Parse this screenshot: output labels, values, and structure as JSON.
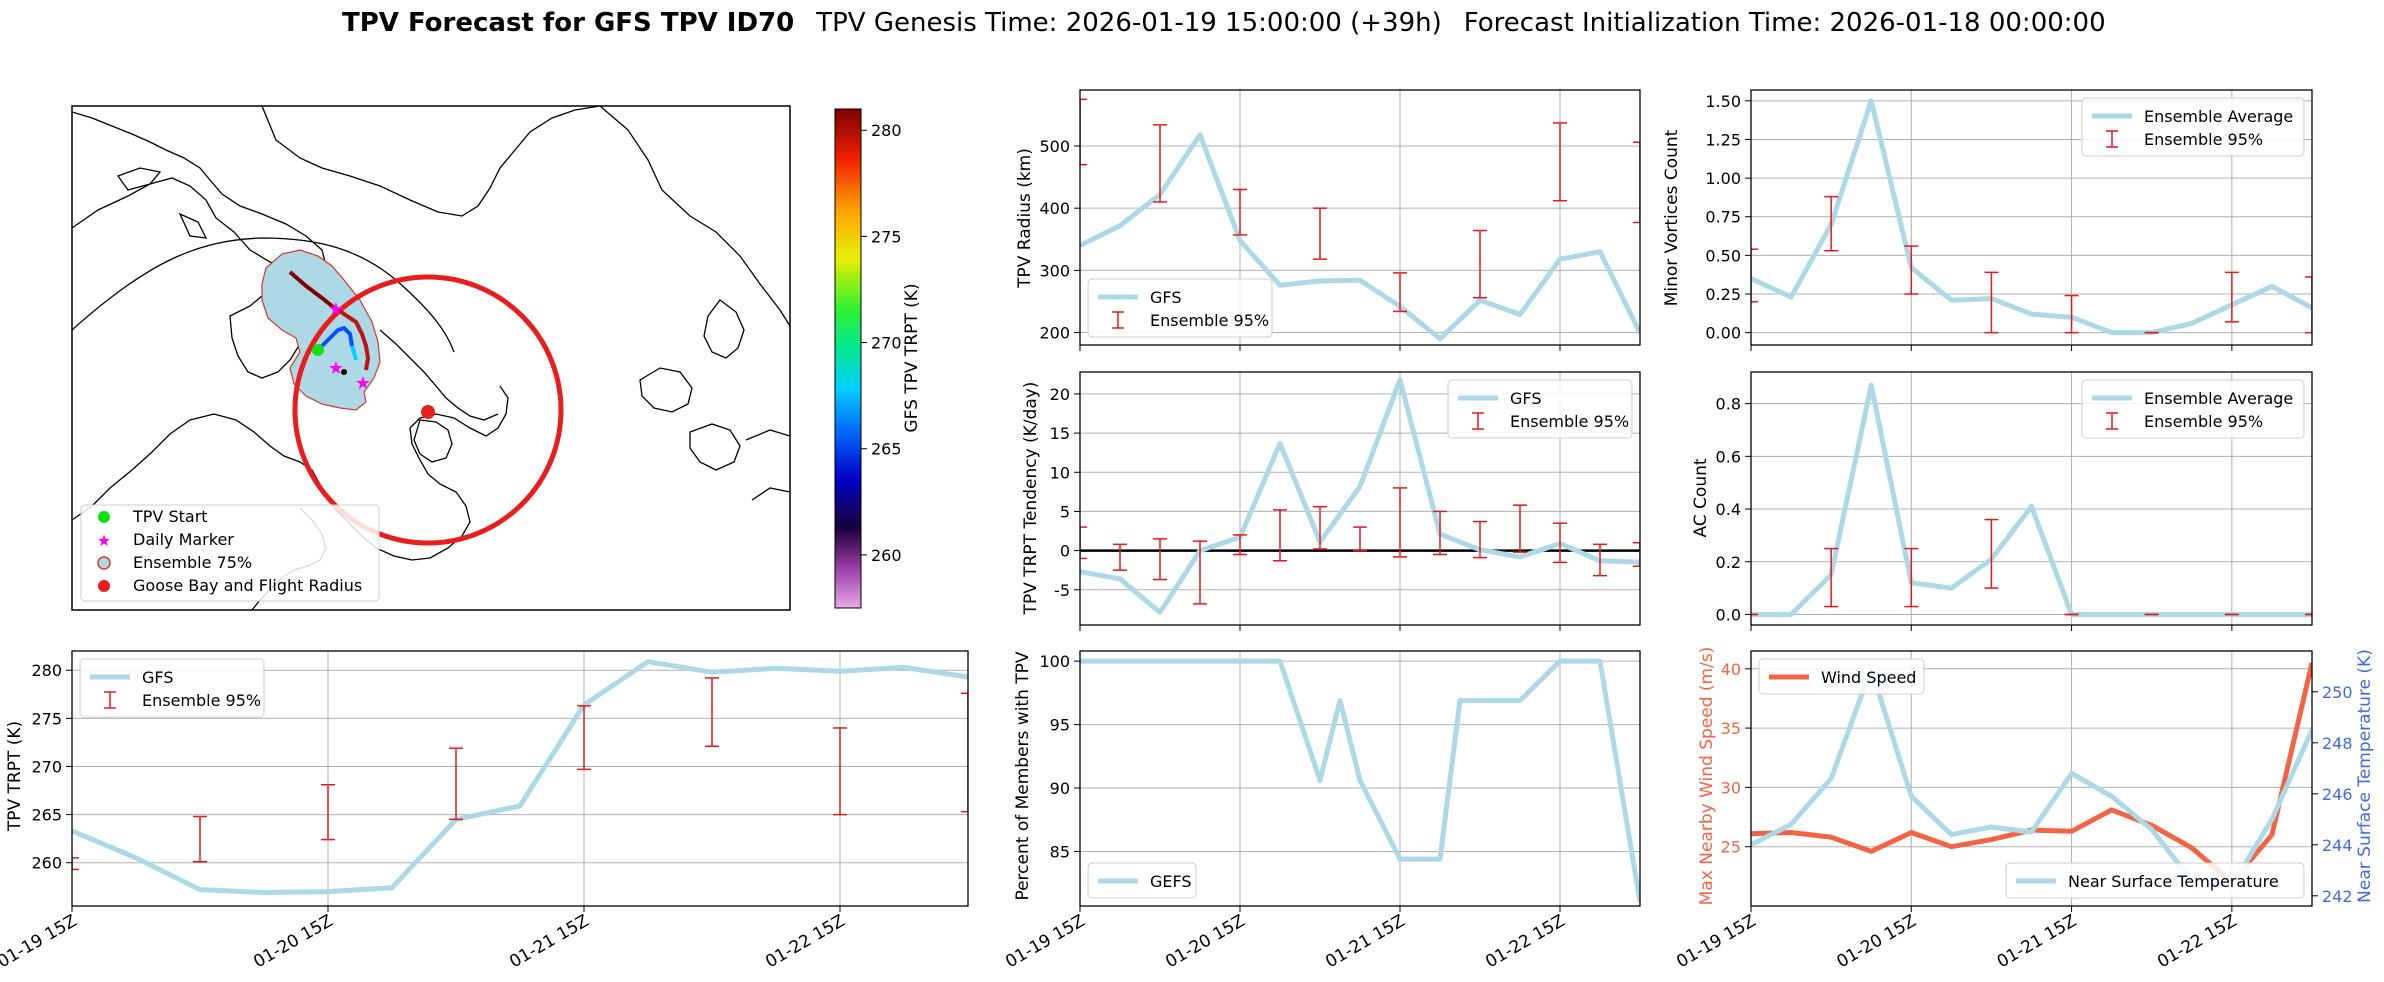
{
  "figure": {
    "title_bold": "TPV Forecast for GFS TPV ID70",
    "title_genesis": "TPV Genesis Time: 2026-01-19 15:00:00 (+39h)",
    "title_init": "Forecast Initialization Time: 2026-01-18 00:00:00"
  },
  "colors": {
    "gfs": "#add8e6",
    "ensemble": "#e31a1c",
    "wind": "#f26444",
    "temp_axis": "#4169e1",
    "grid": "#b0b0b0",
    "zero": "#000000"
  },
  "map": {
    "legend": [
      "TPV Start",
      "Daily Marker",
      "Ensemble 75%",
      "Goose Bay and Flight Radius"
    ],
    "colorbar_label": "GFS TPV TRPT (K)",
    "colorbar_ticks": [
      260,
      265,
      270,
      275,
      280
    ],
    "colorbar_range": [
      257.5,
      281
    ]
  },
  "chart_data": [
    {
      "id": "radius",
      "type": "line",
      "x_ticks": [
        "01-19 15Z",
        "01-20 15Z",
        "01-21 15Z",
        "01-22 15Z"
      ],
      "xlim": [
        0,
        84
      ],
      "ylabel": "TPV Radius (km)",
      "yticks": [
        200,
        300,
        400,
        500
      ],
      "ylim": [
        180,
        590
      ],
      "legend_pos": "lower-left",
      "series": [
        {
          "name": "GFS",
          "x": [
            0,
            6,
            12,
            18,
            24,
            30,
            36,
            42,
            48,
            54,
            60,
            66,
            72,
            78,
            84
          ],
          "values": [
            340,
            372,
            422,
            518,
            348,
            276,
            283,
            284,
            242,
            190,
            252,
            229,
            318,
            330,
            199
          ]
        }
      ],
      "ensemble_95": {
        "name": "Ensemble 95%",
        "x": [
          0,
          12,
          24,
          36,
          48,
          60,
          72,
          84
        ],
        "low": [
          470,
          410,
          357,
          318,
          234,
          256,
          412,
          377
        ],
        "high": [
          575,
          534,
          430,
          400,
          296,
          364,
          537,
          506
        ]
      }
    },
    {
      "id": "minor",
      "type": "line",
      "x_ticks": [
        "01-19 15Z",
        "01-20 15Z",
        "01-21 15Z",
        "01-22 15Z"
      ],
      "xlim": [
        0,
        84
      ],
      "ylabel": "Minor Vortices Count",
      "yticks": [
        0.0,
        0.25,
        0.5,
        0.75,
        1.0,
        1.25,
        1.5
      ],
      "ytick_labels": [
        "0.00",
        "0.25",
        "0.50",
        "0.75",
        "1.00",
        "1.25",
        "1.50"
      ],
      "ylim": [
        -0.08,
        1.57
      ],
      "legend_pos": "upper-right",
      "series": [
        {
          "name": "Ensemble Average",
          "x": [
            0,
            6,
            12,
            18,
            24,
            30,
            36,
            42,
            48,
            54,
            60,
            66,
            72,
            78,
            84
          ],
          "values": [
            0.35,
            0.23,
            0.7,
            1.5,
            0.42,
            0.21,
            0.22,
            0.12,
            0.1,
            0.0,
            0.0,
            0.06,
            0.18,
            0.3,
            0.16
          ]
        }
      ],
      "ensemble_95": {
        "name": "Ensemble 95%",
        "x": [
          0,
          12,
          24,
          36,
          48,
          60,
          72,
          84
        ],
        "low": [
          0.2,
          0.53,
          0.25,
          0.0,
          0.0,
          0.0,
          0.07,
          0.0
        ],
        "high": [
          0.54,
          0.88,
          0.56,
          0.39,
          0.24,
          0.0,
          0.39,
          0.36
        ]
      }
    },
    {
      "id": "tendency",
      "type": "line",
      "x_ticks": [
        "01-19 15Z",
        "01-20 15Z",
        "01-21 15Z",
        "01-22 15Z"
      ],
      "xlim": [
        0,
        84
      ],
      "ylabel": "TPV TRPT Tendency (K/day)",
      "yticks": [
        -5,
        0,
        5,
        10,
        15,
        20
      ],
      "ylim": [
        -9.5,
        22.8
      ],
      "zero_line": true,
      "legend_pos": "upper-right",
      "series": [
        {
          "name": "GFS",
          "x": [
            0,
            6,
            12,
            18,
            24,
            30,
            36,
            42,
            48,
            54,
            60,
            66,
            72,
            78,
            84
          ],
          "values": [
            -2.7,
            -3.6,
            -7.9,
            0.0,
            1.7,
            13.7,
            1.1,
            8.2,
            21.8,
            2.1,
            0.1,
            -0.8,
            0.9,
            -1.3,
            -1.5
          ]
        }
      ],
      "ensemble_95": {
        "name": "Ensemble 95%",
        "x": [
          0,
          6,
          12,
          18,
          24,
          30,
          36,
          42,
          48,
          54,
          60,
          66,
          72,
          78,
          84
        ],
        "low": [
          -1.0,
          -2.5,
          -3.7,
          -6.8,
          -0.5,
          -1.3,
          0.2,
          0.0,
          -0.8,
          -0.5,
          -0.9,
          -0.2,
          -1.5,
          -3.2,
          -2.0
        ],
        "high": [
          3.0,
          0.8,
          1.5,
          1.2,
          2.0,
          5.2,
          5.6,
          3.0,
          8.0,
          5.0,
          3.7,
          5.8,
          3.5,
          0.8,
          1.0
        ]
      }
    },
    {
      "id": "ac",
      "type": "line",
      "x_ticks": [
        "01-19 15Z",
        "01-20 15Z",
        "01-21 15Z",
        "01-22 15Z"
      ],
      "xlim": [
        0,
        84
      ],
      "ylabel": "AC Count",
      "yticks": [
        0.0,
        0.2,
        0.4,
        0.6,
        0.8
      ],
      "ytick_labels": [
        "0.0",
        "0.2",
        "0.4",
        "0.6",
        "0.8"
      ],
      "ylim": [
        -0.04,
        0.92
      ],
      "legend_pos": "upper-right",
      "series": [
        {
          "name": "Ensemble Average",
          "x": [
            0,
            6,
            12,
            18,
            24,
            30,
            36,
            42,
            48,
            54,
            60,
            66,
            72,
            78,
            84
          ],
          "values": [
            0.0,
            0.0,
            0.15,
            0.87,
            0.12,
            0.1,
            0.21,
            0.41,
            0.0,
            0.0,
            0.0,
            0.0,
            0.0,
            0.0,
            0.0
          ]
        }
      ],
      "ensemble_95": {
        "name": "Ensemble 95%",
        "x": [
          0,
          12,
          24,
          36,
          48,
          60,
          72,
          84
        ],
        "low": [
          0.0,
          0.03,
          0.03,
          0.1,
          0.0,
          0.0,
          0.0,
          0.0
        ],
        "high": [
          0.0,
          0.25,
          0.25,
          0.36,
          0.0,
          0.0,
          0.0,
          0.0
        ]
      }
    },
    {
      "id": "trpt",
      "type": "line",
      "x_ticks": [
        "01-19 15Z",
        "01-20 15Z",
        "01-21 15Z",
        "01-22 15Z"
      ],
      "xlim": [
        0,
        84
      ],
      "ylabel": "TPV TRPT (K)",
      "yticks": [
        260,
        265,
        270,
        275,
        280
      ],
      "ylim": [
        255.5,
        282.0
      ],
      "legend_pos": "upper-left",
      "series": [
        {
          "name": "GFS",
          "x": [
            0,
            6,
            12,
            18,
            24,
            30,
            36,
            42,
            48,
            54,
            60,
            66,
            72,
            78,
            84
          ],
          "values": [
            263.3,
            260.5,
            257.2,
            256.9,
            257.0,
            257.4,
            264.5,
            265.9,
            276.4,
            280.9,
            279.8,
            280.2,
            279.9,
            280.3,
            279.3
          ]
        }
      ],
      "ensemble_95": {
        "name": "Ensemble 95%",
        "x": [
          0,
          12,
          24,
          36,
          48,
          60,
          72,
          84
        ],
        "low": [
          259.3,
          260.1,
          262.4,
          264.5,
          269.7,
          272.1,
          265.0,
          265.3
        ],
        "high": [
          260.5,
          264.8,
          268.1,
          271.9,
          276.3,
          279.2,
          274.0,
          277.6
        ]
      }
    },
    {
      "id": "members",
      "type": "line",
      "x_ticks": [
        "01-19 15Z",
        "01-20 15Z",
        "01-21 15Z",
        "01-22 15Z"
      ],
      "xlim": [
        0,
        84
      ],
      "ylabel": "Percent of Members with TPV",
      "yticks": [
        85,
        90,
        95,
        100
      ],
      "ylim": [
        80.7,
        100.8
      ],
      "legend_pos": "lower-left",
      "series": [
        {
          "name": "GEFS",
          "x": [
            0,
            6,
            12,
            18,
            24,
            30,
            36,
            39,
            42,
            48,
            54,
            57,
            60,
            66,
            72,
            78,
            84
          ],
          "values": [
            100,
            100,
            100,
            100,
            100,
            100,
            90.6,
            96.9,
            90.6,
            84.4,
            84.4,
            96.9,
            96.9,
            96.9,
            100,
            100,
            81.0
          ]
        }
      ]
    },
    {
      "id": "wind_temp",
      "type": "line",
      "x_ticks": [
        "01-19 15Z",
        "01-20 15Z",
        "01-21 15Z",
        "01-22 15Z"
      ],
      "xlim": [
        0,
        84
      ],
      "ylabel": "Max Nearby Wind Speed (m/s)",
      "yticks": [
        25,
        30,
        35,
        40
      ],
      "ylim": [
        20.0,
        41.5
      ],
      "ylabel2": "Near Surface Temperature (K)",
      "yticks2": [
        242,
        244,
        246,
        248,
        250
      ],
      "ylim2": [
        241.6,
        251.6
      ],
      "series": [
        {
          "name": "Wind Speed",
          "axis": "left",
          "x": [
            0,
            6,
            12,
            18,
            24,
            30,
            36,
            42,
            48,
            54,
            60,
            66,
            72,
            78,
            84
          ],
          "values": [
            26.1,
            26.2,
            25.8,
            24.6,
            26.2,
            25.0,
            25.6,
            26.4,
            26.3,
            28.1,
            26.8,
            24.9,
            22.0,
            26.0,
            40.5
          ]
        },
        {
          "name": "Near Surface Temperature",
          "axis": "right",
          "x": [
            0,
            6,
            12,
            18,
            24,
            30,
            36,
            42,
            48,
            54,
            60,
            66,
            72,
            78,
            84
          ],
          "values": [
            244.0,
            244.8,
            246.6,
            250.9,
            245.9,
            244.4,
            244.7,
            244.5,
            246.8,
            245.9,
            244.6,
            242.6,
            242.4,
            245.0,
            248.5
          ]
        }
      ],
      "legend_wind_pos": "upper-left",
      "legend_temp_pos": "lower-right"
    }
  ]
}
